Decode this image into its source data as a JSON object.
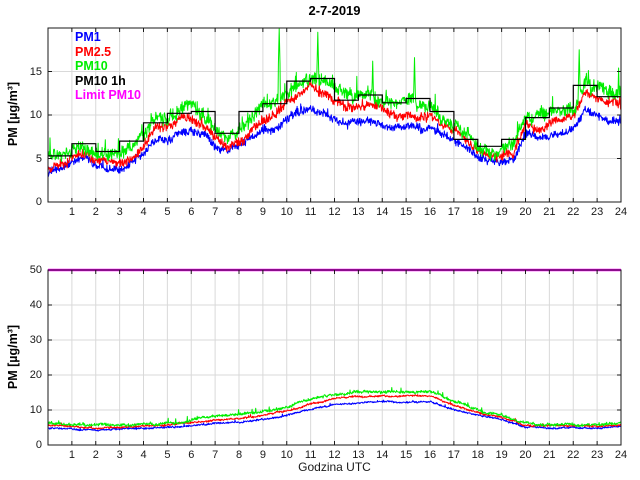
{
  "title": "2-7-2019",
  "chart_data": [
    {
      "name": "top-panel",
      "type": "line",
      "xlabel": "",
      "ylabel": "PM [µg/m³]",
      "x_unit": "Godzina UTC (hour of day)",
      "xlim": [
        0,
        24
      ],
      "ylim": [
        0,
        20
      ],
      "xticks": [
        1,
        2,
        3,
        4,
        5,
        6,
        7,
        8,
        9,
        10,
        11,
        12,
        13,
        14,
        15,
        16,
        17,
        18,
        19,
        20,
        21,
        22,
        23,
        24
      ],
      "yticks": [
        0,
        5,
        10,
        15
      ],
      "grid": true,
      "legend_location": "top-left-inside",
      "series": [
        {
          "name": "PM1",
          "color": "#0000ff",
          "type": "noisy-line",
          "x_step": 0.5,
          "noise": 0.55,
          "values": [
            3.5,
            3.7,
            4.4,
            4.9,
            4.2,
            3.9,
            4.0,
            4.5,
            5.5,
            7.2,
            6.9,
            7.8,
            8.1,
            7.4,
            6.2,
            5.4,
            6.0,
            7.0,
            8.0,
            8.6,
            9.4,
            10.2,
            11.0,
            10.5,
            9.6,
            9.1,
            9.3,
            9.5,
            8.9,
            8.7,
            8.9,
            8.7,
            8.3,
            7.4,
            6.9,
            5.9,
            5.0,
            4.5,
            4.4,
            4.8,
            7.7,
            7.3,
            7.6,
            8.1,
            8.3,
            10.7,
            9.8,
            9.3,
            9.0
          ]
        },
        {
          "name": "PM2.5",
          "color": "#ff0000",
          "type": "noisy-line",
          "x_step": 0.5,
          "noise": 0.6,
          "values": [
            4.1,
            4.3,
            5.1,
            5.7,
            4.9,
            4.5,
            4.7,
            5.3,
            6.4,
            8.4,
            8.1,
            9.2,
            9.6,
            8.8,
            7.4,
            6.5,
            7.1,
            8.3,
            9.4,
            10.2,
            11.1,
            12.1,
            13.1,
            12.5,
            11.4,
            10.8,
            11.0,
            11.2,
            10.5,
            10.3,
            10.5,
            10.2,
            9.9,
            8.9,
            8.2,
            7.1,
            6.0,
            5.4,
            5.3,
            5.8,
            9.2,
            8.7,
            9.1,
            9.7,
            9.9,
            12.8,
            11.6,
            11.0,
            10.7
          ]
        },
        {
          "name": "PM10",
          "color": "#00ee00",
          "type": "noisy-line",
          "x_step": 0.5,
          "noise": 0.9,
          "values": [
            5.2,
            5.4,
            6.3,
            6.9,
            6.0,
            5.6,
            5.8,
            6.4,
            7.6,
            9.8,
            9.4,
            10.6,
            11.0,
            10.1,
            8.6,
            7.6,
            8.3,
            9.6,
            10.8,
            11.6,
            12.6,
            13.6,
            14.6,
            14.0,
            12.8,
            12.2,
            12.4,
            12.6,
            11.9,
            11.7,
            11.9,
            11.6,
            11.2,
            10.1,
            9.4,
            8.2,
            7.0,
            6.4,
            6.3,
            6.8,
            10.4,
            9.9,
            10.3,
            10.9,
            11.1,
            14.2,
            13.0,
            12.4,
            12.1
          ],
          "spikes": [
            [
              9.68,
              19.9
            ],
            [
              11.3,
              19.5
            ],
            [
              13.6,
              16.2
            ],
            [
              15.35,
              16.6
            ],
            [
              22.25,
              17.5
            ],
            [
              23.9,
              15.4
            ]
          ]
        },
        {
          "name": "PM10 1h",
          "color": "#000000",
          "type": "hourly-step",
          "values": [
            5.3,
            6.7,
            5.8,
            7.0,
            9.1,
            10.2,
            10.4,
            7.9,
            10.4,
            11.3,
            13.9,
            14.2,
            11.7,
            12.3,
            11.4,
            11.9,
            10.4,
            7.2,
            6.4,
            7.2,
            9.7,
            10.8,
            13.4,
            12.1
          ]
        },
        {
          "name": "Limit PM10",
          "color": "#ff00ff",
          "type": "hline",
          "value": 50
        }
      ]
    },
    {
      "name": "bottom-panel",
      "type": "line",
      "xlabel": "Godzina UTC",
      "ylabel": "PM [µg/m³]",
      "x_unit": "Godzina UTC (hour of day)",
      "xlim": [
        0,
        24
      ],
      "ylim": [
        0,
        50
      ],
      "xticks": [
        1,
        2,
        3,
        4,
        5,
        6,
        7,
        8,
        9,
        10,
        11,
        12,
        13,
        14,
        15,
        16,
        17,
        18,
        19,
        20,
        21,
        22,
        23,
        24
      ],
      "yticks": [
        0,
        10,
        20,
        30,
        40,
        50
      ],
      "grid": true,
      "legend_location": "none",
      "series": [
        {
          "name": "PM1",
          "color": "#0000ff",
          "type": "noisy-line",
          "x_step": 1,
          "noise": 0.3,
          "values": [
            4.9,
            4.7,
            4.4,
            4.4,
            4.6,
            5.0,
            5.6,
            6.2,
            6.4,
            7.3,
            8.5,
            10.2,
            11.6,
            12.2,
            12.4,
            12.3,
            12.6,
            10.2,
            8.4,
            7.1,
            5.1,
            4.8,
            4.8,
            4.9,
            5.3
          ]
        },
        {
          "name": "PM2.5",
          "color": "#ff0000",
          "type": "noisy-line",
          "x_step": 1,
          "noise": 0.3,
          "values": [
            5.6,
            5.4,
            5.0,
            5.0,
            5.3,
            5.7,
            6.3,
            7.1,
            7.5,
            8.5,
            9.9,
            11.7,
            13.2,
            13.8,
            14.0,
            13.9,
            14.2,
            11.4,
            9.4,
            7.9,
            5.7,
            5.4,
            5.4,
            5.5,
            6.0
          ]
        },
        {
          "name": "PM10",
          "color": "#00ee00",
          "type": "noisy-line",
          "x_step": 1,
          "noise": 0.5,
          "values": [
            6.2,
            6.0,
            5.6,
            5.6,
            5.9,
            6.3,
            7.0,
            7.9,
            8.3,
            9.4,
            10.9,
            12.8,
            14.4,
            15.0,
            15.2,
            15.1,
            15.4,
            12.4,
            10.2,
            8.6,
            6.2,
            5.9,
            5.9,
            6.0,
            6.6
          ]
        },
        {
          "name": "Limit PM10",
          "color": "#ff00ff",
          "type": "hline",
          "value": 50
        }
      ]
    }
  ],
  "style": {
    "grid_color": "#d9d9d9",
    "axis_color": "#1a1a1a",
    "background": "#ffffff"
  }
}
